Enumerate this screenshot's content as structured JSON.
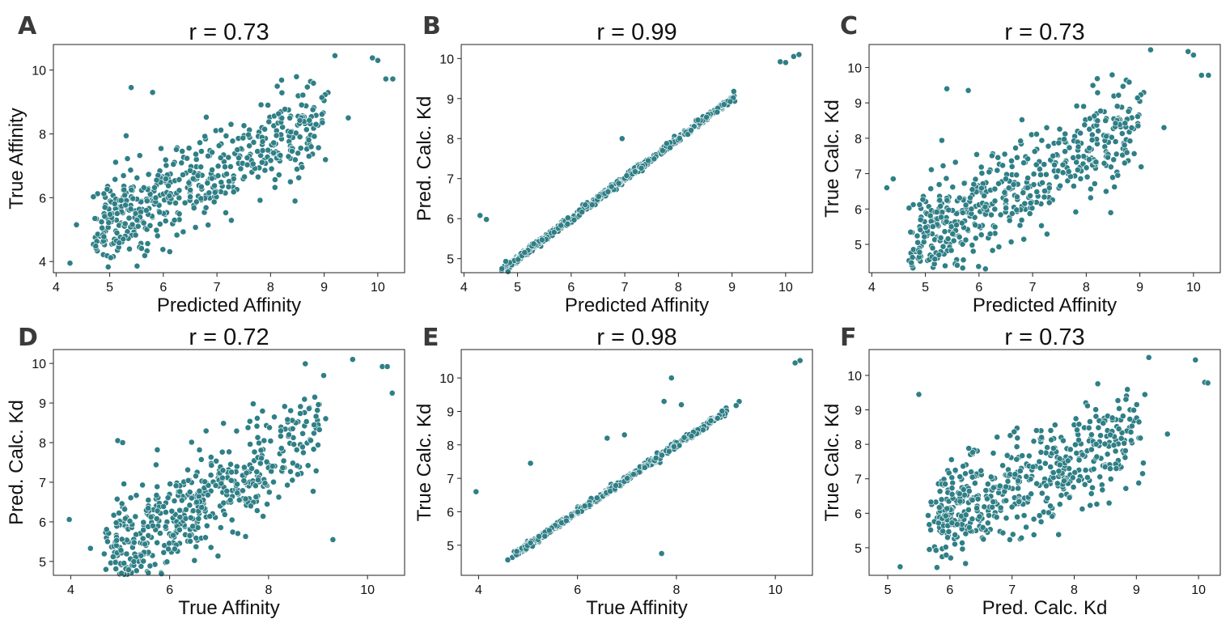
{
  "figure": {
    "marker_color": "#2f7f86",
    "chart_data": [
      {
        "letter": "A",
        "type": "scatter",
        "title": "r = 0.73",
        "xlabel": "Predicted Affinity",
        "ylabel": "True Affinity",
        "xlim": [
          3.95,
          10.5
        ],
        "ylim": [
          3.65,
          10.8
        ],
        "xticks": [
          4,
          5,
          6,
          7,
          8,
          9,
          10
        ],
        "yticks": [
          4,
          6,
          8,
          10
        ],
        "r": 0.73,
        "seed": 11,
        "mode": "cloud",
        "outliers": [
          [
            4.26,
            3.95
          ],
          [
            4.38,
            5.15
          ],
          [
            9.2,
            10.45
          ],
          [
            9.9,
            10.38
          ],
          [
            10.0,
            10.3
          ],
          [
            10.15,
            9.72
          ],
          [
            10.28,
            9.72
          ],
          [
            9.45,
            8.5
          ],
          [
            5.4,
            9.45
          ],
          [
            5.8,
            9.3
          ]
        ]
      },
      {
        "letter": "B",
        "type": "scatter",
        "title": "r = 0.99",
        "xlabel": "Predicted Affinity",
        "ylabel": "Pred. Calc. Kd",
        "xlim": [
          3.95,
          10.5
        ],
        "ylim": [
          4.65,
          10.35
        ],
        "xticks": [
          4,
          5,
          6,
          7,
          8,
          9,
          10
        ],
        "yticks": [
          5,
          6,
          7,
          8,
          9,
          10
        ],
        "r": 0.99,
        "seed": 23,
        "mode": "line",
        "outliers": [
          [
            4.3,
            6.08
          ],
          [
            4.42,
            5.98
          ],
          [
            6.95,
            8.0
          ],
          [
            4.78,
            4.93
          ],
          [
            9.9,
            9.92
          ],
          [
            10.0,
            9.9
          ],
          [
            10.15,
            10.05
          ],
          [
            10.25,
            10.1
          ]
        ]
      },
      {
        "letter": "C",
        "type": "scatter",
        "title": "r = 0.73",
        "xlabel": "Predicted Affinity",
        "ylabel": "True Calc. Kd",
        "xlim": [
          3.95,
          10.5
        ],
        "ylim": [
          4.2,
          10.65
        ],
        "xticks": [
          4,
          5,
          6,
          7,
          8,
          9,
          10
        ],
        "yticks": [
          5,
          6,
          7,
          8,
          9,
          10
        ],
        "r": 0.73,
        "seed": 11,
        "mode": "cloud",
        "outliers": [
          [
            4.28,
            6.6
          ],
          [
            4.4,
            6.85
          ],
          [
            9.2,
            10.5
          ],
          [
            9.9,
            10.45
          ],
          [
            10.0,
            10.35
          ],
          [
            10.15,
            9.78
          ],
          [
            10.28,
            9.78
          ],
          [
            9.45,
            8.3
          ],
          [
            5.4,
            9.4
          ],
          [
            5.8,
            9.35
          ]
        ]
      },
      {
        "letter": "D",
        "type": "scatter",
        "title": "r = 0.72",
        "xlabel": "True Affinity",
        "ylabel": "Pred. Calc. Kd",
        "xlim": [
          3.65,
          10.75
        ],
        "ylim": [
          4.65,
          10.35
        ],
        "xticks": [
          4,
          6,
          8,
          10
        ],
        "yticks": [
          5,
          6,
          7,
          8,
          9,
          10
        ],
        "r": 0.72,
        "seed": 37,
        "mode": "cloud",
        "outliers": [
          [
            3.97,
            6.06
          ],
          [
            4.4,
            5.33
          ],
          [
            9.7,
            10.1
          ],
          [
            10.3,
            9.92
          ],
          [
            10.4,
            9.92
          ],
          [
            10.5,
            9.25
          ],
          [
            4.95,
            8.05
          ],
          [
            5.05,
            8.0
          ],
          [
            9.3,
            5.55
          ]
        ]
      },
      {
        "letter": "E",
        "type": "scatter",
        "title": "r = 0.98",
        "xlabel": "True Affinity",
        "ylabel": "True Calc. Kd",
        "xlim": [
          3.65,
          10.75
        ],
        "ylim": [
          4.1,
          10.85
        ],
        "xticks": [
          4,
          6,
          8,
          10
        ],
        "yticks": [
          5,
          6,
          7,
          8,
          9,
          10
        ],
        "r": 0.98,
        "seed": 51,
        "mode": "line",
        "outliers": [
          [
            3.95,
            6.6
          ],
          [
            5.05,
            7.45
          ],
          [
            7.9,
            10.0
          ],
          [
            7.75,
            9.3
          ],
          [
            8.1,
            9.2
          ],
          [
            7.7,
            4.75
          ],
          [
            6.6,
            8.2
          ],
          [
            6.95,
            8.3
          ],
          [
            10.4,
            10.45
          ],
          [
            10.5,
            10.52
          ]
        ]
      },
      {
        "letter": "F",
        "type": "scatter",
        "title": "r = 0.73",
        "xlabel": "Pred. Calc. Kd",
        "ylabel": "True Calc. Kd",
        "xlim": [
          4.7,
          10.35
        ],
        "ylim": [
          4.2,
          10.75
        ],
        "xticks": [
          5,
          6,
          7,
          8,
          9,
          10
        ],
        "yticks": [
          5,
          6,
          7,
          8,
          9,
          10
        ],
        "r": 0.73,
        "seed": 67,
        "mode": "cloud",
        "outliers": [
          [
            9.2,
            10.52
          ],
          [
            9.95,
            10.45
          ],
          [
            10.1,
            9.8
          ],
          [
            10.15,
            9.78
          ],
          [
            9.5,
            8.3
          ],
          [
            5.5,
            9.45
          ],
          [
            5.2,
            4.45
          ],
          [
            9.1,
            7.15
          ]
        ]
      }
    ]
  }
}
